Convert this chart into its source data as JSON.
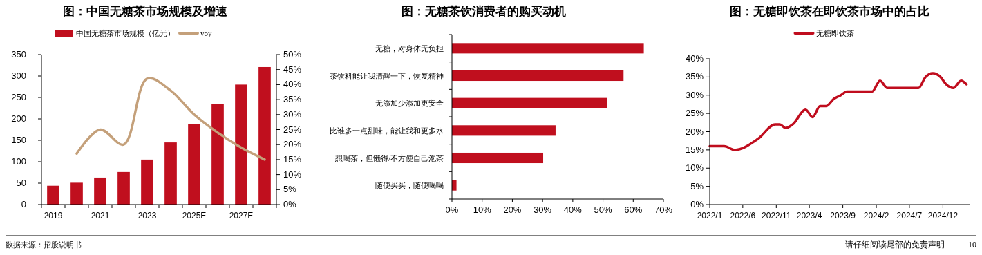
{
  "chart_data": [
    {
      "type": "bar",
      "title": "图：中国无糖茶市场规模及增速",
      "categories": [
        "2019",
        null,
        "2021",
        null,
        "2023",
        null,
        "2025E",
        null,
        "2027E",
        null
      ],
      "series": [
        {
          "name": "中国无糖茶市场规模（亿元）",
          "color": "#c00f1e",
          "values": [
            44,
            51,
            63,
            76,
            105,
            145,
            188,
            234,
            280,
            321
          ]
        },
        {
          "name": "yoy",
          "type": "line",
          "axis": "y2",
          "color": "#c4a07a",
          "values": [
            null,
            17,
            25,
            20,
            42,
            38,
            30,
            24,
            19,
            15
          ]
        }
      ],
      "ylim": [
        0,
        350
      ],
      "yticks": [
        0,
        50,
        100,
        150,
        200,
        250,
        300,
        350
      ],
      "y2lim": [
        0,
        50
      ],
      "y2ticks": [
        {
          "value": 0,
          "label": "0%"
        },
        {
          "value": 5,
          "label": "5%"
        },
        {
          "value": 10,
          "label": "10%"
        },
        {
          "value": 15,
          "label": "15%"
        },
        {
          "value": 20,
          "label": "20%"
        },
        {
          "value": 25,
          "label": "25%"
        },
        {
          "value": 30,
          "label": "30%"
        },
        {
          "value": 35,
          "label": "35%"
        },
        {
          "value": 40,
          "label": "40%"
        },
        {
          "value": 45,
          "label": "45%"
        },
        {
          "value": 50,
          "label": "50%"
        }
      ],
      "legend": "top",
      "annotations": [
        "数据来源：招股说明书"
      ]
    },
    {
      "type": "bar",
      "orientation": "horizontal",
      "title": "图：无糖茶饮消费者的购买动机",
      "categories": [
        "无糖，对身体无负担",
        "茶饮料能让我清醒一下，恢复精神",
        "无添加少添加更安全",
        "比谁多一点甜味，能让我和更多水",
        "想喝茶，但懒得/不方便自己泡茶",
        "随便买买，随便喝喝"
      ],
      "values": [
        63.5,
        56.8,
        51.3,
        34.3,
        30.2,
        1.5
      ],
      "color": "#c00f1e",
      "xlim": [
        0,
        70
      ],
      "xticks": [
        {
          "value": 0,
          "label": "0%"
        },
        {
          "value": 10,
          "label": "10%"
        },
        {
          "value": 20,
          "label": "20%"
        },
        {
          "value": 30,
          "label": "30%"
        },
        {
          "value": 40,
          "label": "40%"
        },
        {
          "value": 50,
          "label": "50%"
        },
        {
          "value": 60,
          "label": "60%"
        },
        {
          "value": 70,
          "label": "70%"
        }
      ]
    },
    {
      "type": "line",
      "title": "图：无糖即饮茶在即饮茶市场中的占比",
      "x": [
        "2022-01-01",
        "2022-03-08",
        "2022-04-25",
        "2022-08-09",
        "2022-10-27",
        "2022-11-17",
        "2022-12-13",
        "2023-01-15",
        "2023-03-15",
        "2023-04-16",
        "2023-05-20",
        "2023-06-16",
        "2023-07-22",
        "2023-08-23",
        "2023-09-19",
        "2023-12-18",
        "2024-01-13",
        "2024-02-18",
        "2024-03-22",
        "2024-04-22",
        "2024-07-16",
        "2024-08-12",
        "2024-09-13",
        "2024-10-16",
        "2024-11-20",
        "2024-12-16",
        "2025-01-18",
        "2025-02-22",
        "2025-03-19"
      ],
      "series": [
        {
          "name": "无糖即饮茶",
          "color": "#c00d1e",
          "values": [
            16,
            16,
            15,
            18,
            22,
            22,
            21,
            22,
            26,
            24,
            27,
            27,
            29,
            30,
            31,
            31,
            31,
            34,
            32,
            32,
            32,
            32,
            35,
            36,
            35,
            33,
            32,
            34,
            33
          ]
        }
      ],
      "xlim": [
        "2022-01-01",
        "2025-04-05"
      ],
      "xticks": [
        {
          "value": "2022-01-01",
          "label": "2022/1"
        },
        {
          "value": "2022-06-01",
          "label": "2022/6"
        },
        {
          "value": "2022-11-01",
          "label": "2022/11"
        },
        {
          "value": "2023-04-01",
          "label": "2023/4"
        },
        {
          "value": "2023-09-01",
          "label": "2023/9"
        },
        {
          "value": "2024-02-01",
          "label": "2024/2"
        },
        {
          "value": "2024-07-01",
          "label": "2024/7"
        },
        {
          "value": "2024-12-01",
          "label": "2024/12"
        }
      ],
      "ylim": [
        0,
        40
      ],
      "yticks": [
        {
          "value": 0,
          "label": "0%"
        },
        {
          "value": 5,
          "label": "5%"
        },
        {
          "value": 10,
          "label": "10%"
        },
        {
          "value": 15,
          "label": "15%"
        },
        {
          "value": 20,
          "label": "20%"
        },
        {
          "value": 25,
          "label": "25%"
        },
        {
          "value": 30,
          "label": "30%"
        },
        {
          "value": 35,
          "label": "35%"
        },
        {
          "value": 40,
          "label": "40%"
        }
      ],
      "legend": "top",
      "annotations": [
        "请仔细阅读尾部的免责声明",
        "10"
      ]
    }
  ]
}
